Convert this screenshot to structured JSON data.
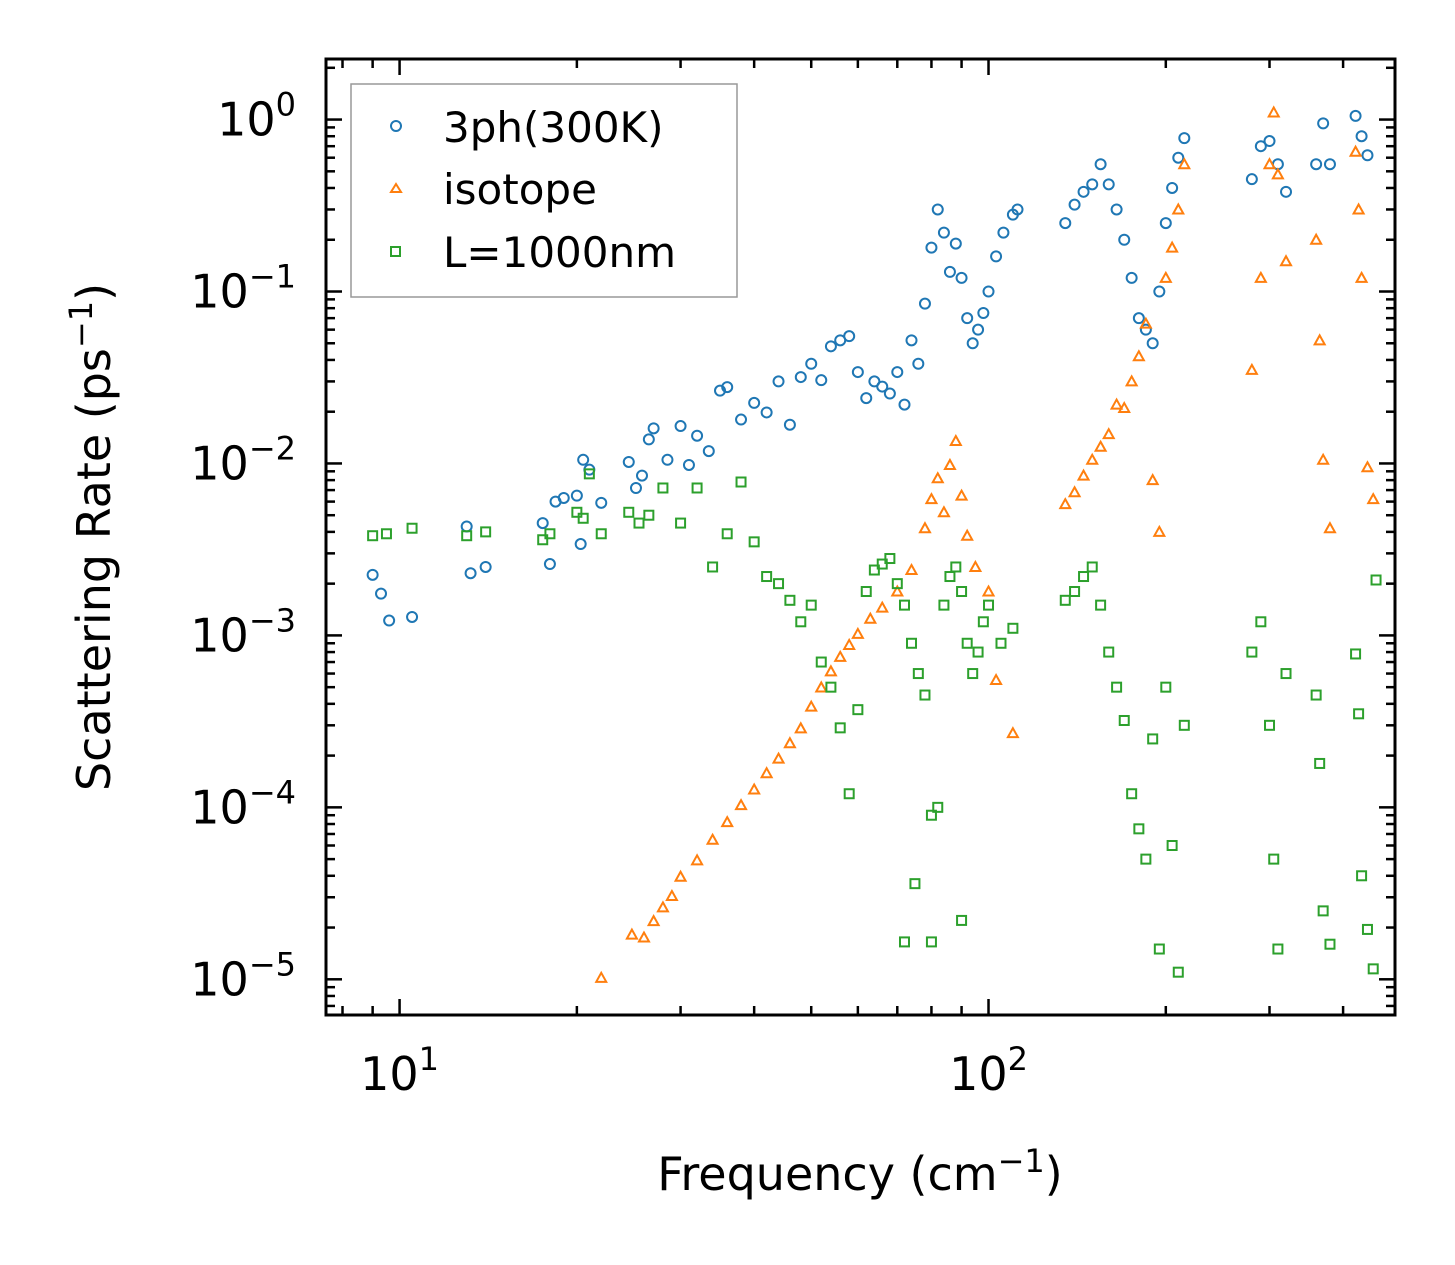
{
  "chart_data": {
    "type": "scatter",
    "xscale": "log",
    "yscale": "log",
    "xlim": [
      7.5,
      490
    ],
    "ylim": [
      6.2e-06,
      2.25
    ],
    "xlabel": {
      "base": "Frequency (cm",
      "sup": "−1",
      "tail": ")"
    },
    "ylabel": {
      "base": "Scattering Rate (ps",
      "sup": "−1",
      "tail": ")"
    },
    "xticks": [
      {
        "value": 10,
        "base": "10",
        "exp": "1"
      },
      {
        "value": 100,
        "base": "10",
        "exp": "2"
      }
    ],
    "yticks": [
      {
        "value": 1,
        "base": "10",
        "exp": "0"
      },
      {
        "value": 0.1,
        "base": "10",
        "exp": "−1"
      },
      {
        "value": 0.01,
        "base": "10",
        "exp": "−2"
      },
      {
        "value": 0.001,
        "base": "10",
        "exp": "−3"
      },
      {
        "value": 0.0001,
        "base": "10",
        "exp": "−4"
      },
      {
        "value": 1e-05,
        "base": "10",
        "exp": "−5"
      }
    ],
    "legend_position": "top-left",
    "series": [
      {
        "name": "3ph(300K)",
        "marker": "circle",
        "color": "#1f77b4",
        "points": [
          [
            9.0,
            0.00225
          ],
          [
            9.3,
            0.00175
          ],
          [
            9.6,
            0.00122
          ],
          [
            10.5,
            0.00128
          ],
          [
            13.0,
            0.0043
          ],
          [
            13.2,
            0.0023
          ],
          [
            14.0,
            0.0025
          ],
          [
            17.5,
            0.0045
          ],
          [
            18.0,
            0.0026
          ],
          [
            18.4,
            0.006
          ],
          [
            19.0,
            0.0063
          ],
          [
            20.0,
            0.0065
          ],
          [
            20.3,
            0.0034
          ],
          [
            20.5,
            0.0105
          ],
          [
            21.0,
            0.0092
          ],
          [
            22.0,
            0.0059
          ],
          [
            24.5,
            0.0102
          ],
          [
            25.2,
            0.0072
          ],
          [
            25.8,
            0.0085
          ],
          [
            26.5,
            0.0138
          ],
          [
            27.0,
            0.016
          ],
          [
            28.5,
            0.0105
          ],
          [
            30.0,
            0.0165
          ],
          [
            31.0,
            0.0098
          ],
          [
            32.0,
            0.0145
          ],
          [
            33.5,
            0.0118
          ],
          [
            35.0,
            0.0265
          ],
          [
            36.0,
            0.0278
          ],
          [
            38.0,
            0.018
          ],
          [
            40.0,
            0.0225
          ],
          [
            42.0,
            0.0198
          ],
          [
            44.0,
            0.03
          ],
          [
            46.0,
            0.0168
          ],
          [
            48.0,
            0.0318
          ],
          [
            50.0,
            0.038
          ],
          [
            52.0,
            0.0305
          ],
          [
            54.0,
            0.048
          ],
          [
            56.0,
            0.052
          ],
          [
            58.0,
            0.055
          ],
          [
            60.0,
            0.034
          ],
          [
            62.0,
            0.024
          ],
          [
            64.0,
            0.03
          ],
          [
            66.0,
            0.028
          ],
          [
            68.0,
            0.0255
          ],
          [
            70.0,
            0.034
          ],
          [
            72.0,
            0.022
          ],
          [
            74.0,
            0.052
          ],
          [
            76.0,
            0.038
          ],
          [
            78.0,
            0.085
          ],
          [
            80.0,
            0.18
          ],
          [
            82.0,
            0.3
          ],
          [
            84.0,
            0.22
          ],
          [
            86.0,
            0.13
          ],
          [
            88.0,
            0.19
          ],
          [
            90.0,
            0.12
          ],
          [
            92.0,
            0.07
          ],
          [
            94.0,
            0.05
          ],
          [
            96.0,
            0.06
          ],
          [
            98.0,
            0.075
          ],
          [
            100.0,
            0.1
          ],
          [
            103.0,
            0.16
          ],
          [
            106.0,
            0.22
          ],
          [
            110.0,
            0.28
          ],
          [
            112.0,
            0.3
          ],
          [
            135.0,
            0.25
          ],
          [
            140.0,
            0.32
          ],
          [
            145.0,
            0.38
          ],
          [
            150.0,
            0.42
          ],
          [
            155.0,
            0.55
          ],
          [
            160.0,
            0.42
          ],
          [
            165.0,
            0.3
          ],
          [
            170.0,
            0.2
          ],
          [
            175.0,
            0.12
          ],
          [
            180.0,
            0.07
          ],
          [
            185.0,
            0.06
          ],
          [
            190.0,
            0.05
          ],
          [
            195.0,
            0.1
          ],
          [
            200.0,
            0.25
          ],
          [
            205.0,
            0.4
          ],
          [
            210.0,
            0.6
          ],
          [
            215.0,
            0.78
          ],
          [
            280.0,
            0.45
          ],
          [
            290.0,
            0.7
          ],
          [
            300.0,
            0.75
          ],
          [
            310.0,
            0.55
          ],
          [
            320.0,
            0.38
          ],
          [
            360.0,
            0.55
          ],
          [
            370.0,
            0.95
          ],
          [
            380.0,
            0.55
          ],
          [
            420.0,
            1.05
          ],
          [
            430.0,
            0.8
          ],
          [
            440.0,
            0.62
          ]
        ]
      },
      {
        "name": "isotope",
        "marker": "triangle",
        "color": "#ff7f0e",
        "points": [
          [
            22.0,
            1.02e-05
          ],
          [
            24.8,
            1.82e-05
          ],
          [
            26.0,
            1.75e-05
          ],
          [
            27.0,
            2.18e-05
          ],
          [
            28.0,
            2.62e-05
          ],
          [
            29.0,
            3.05e-05
          ],
          [
            30.0,
            3.95e-05
          ],
          [
            32.0,
            4.92e-05
          ],
          [
            34.0,
            6.48e-05
          ],
          [
            36.0,
            8.2e-05
          ],
          [
            38.0,
            0.000103
          ],
          [
            40.0,
            0.000127
          ],
          [
            42.0,
            0.000158
          ],
          [
            44.0,
            0.000192
          ],
          [
            46.0,
            0.000236
          ],
          [
            48.0,
            0.000288
          ],
          [
            50.0,
            0.000385
          ],
          [
            52.0,
            0.000498
          ],
          [
            54.0,
            0.000618
          ],
          [
            56.0,
            0.00075
          ],
          [
            58.0,
            0.00088
          ],
          [
            60.0,
            0.00102
          ],
          [
            63.0,
            0.00125
          ],
          [
            66.0,
            0.00145
          ],
          [
            70.0,
            0.0018
          ],
          [
            74.0,
            0.0024
          ],
          [
            78.0,
            0.0042
          ],
          [
            80.0,
            0.0062
          ],
          [
            82.0,
            0.0082
          ],
          [
            84.0,
            0.0052
          ],
          [
            86.0,
            0.0098
          ],
          [
            88.0,
            0.0135
          ],
          [
            90.0,
            0.0065
          ],
          [
            92.0,
            0.0038
          ],
          [
            95.0,
            0.0025
          ],
          [
            100.0,
            0.0018
          ],
          [
            103.0,
            0.00055
          ],
          [
            110.0,
            0.00027
          ],
          [
            135.0,
            0.0058
          ],
          [
            140.0,
            0.0068
          ],
          [
            145.0,
            0.0085
          ],
          [
            150.0,
            0.0105
          ],
          [
            155.0,
            0.0125
          ],
          [
            160.0,
            0.0148
          ],
          [
            165.0,
            0.022
          ],
          [
            170.0,
            0.021
          ],
          [
            175.0,
            0.03
          ],
          [
            180.0,
            0.042
          ],
          [
            185.0,
            0.065
          ],
          [
            190.0,
            0.008
          ],
          [
            195.0,
            0.004
          ],
          [
            200.0,
            0.12
          ],
          [
            205.0,
            0.18
          ],
          [
            210.0,
            0.3
          ],
          [
            215.0,
            0.55
          ],
          [
            280.0,
            0.035
          ],
          [
            290.0,
            0.12
          ],
          [
            300.0,
            0.55
          ],
          [
            305.0,
            1.1
          ],
          [
            310.0,
            0.48
          ],
          [
            320.0,
            0.15
          ],
          [
            360.0,
            0.2
          ],
          [
            365.0,
            0.052
          ],
          [
            370.0,
            0.0105
          ],
          [
            380.0,
            0.0042
          ],
          [
            420.0,
            0.65
          ],
          [
            425.0,
            0.3
          ],
          [
            430.0,
            0.12
          ],
          [
            440.0,
            0.0095
          ],
          [
            450.0,
            0.0062
          ]
        ]
      },
      {
        "name": "L=1000nm",
        "marker": "square",
        "color": "#2ca02c",
        "points": [
          [
            9.0,
            0.0038
          ],
          [
            9.5,
            0.0039
          ],
          [
            10.5,
            0.0042
          ],
          [
            13.0,
            0.0038
          ],
          [
            14.0,
            0.004
          ],
          [
            17.5,
            0.0036
          ],
          [
            18.0,
            0.0039
          ],
          [
            20.0,
            0.0052
          ],
          [
            20.5,
            0.0048
          ],
          [
            21.0,
            0.0087
          ],
          [
            22.0,
            0.0039
          ],
          [
            24.5,
            0.0052
          ],
          [
            25.5,
            0.0045
          ],
          [
            26.5,
            0.005
          ],
          [
            28.0,
            0.0072
          ],
          [
            30.0,
            0.0045
          ],
          [
            32.0,
            0.0072
          ],
          [
            34.0,
            0.0025
          ],
          [
            36.0,
            0.0039
          ],
          [
            38.0,
            0.0078
          ],
          [
            40.0,
            0.0035
          ],
          [
            42.0,
            0.0022
          ],
          [
            44.0,
            0.002
          ],
          [
            46.0,
            0.0016
          ],
          [
            48.0,
            0.0012
          ],
          [
            50.0,
            0.0015
          ],
          [
            52.0,
            0.0007
          ],
          [
            54.0,
            0.0005
          ],
          [
            56.0,
            0.00029
          ],
          [
            58.0,
            0.00012
          ],
          [
            60.0,
            0.00037
          ],
          [
            62.0,
            0.0018
          ],
          [
            64.0,
            0.0024
          ],
          [
            66.0,
            0.0026
          ],
          [
            68.0,
            0.0028
          ],
          [
            70.0,
            0.002
          ],
          [
            72.0,
            0.0015
          ],
          [
            74.0,
            0.0009
          ],
          [
            76.0,
            0.0006
          ],
          [
            78.0,
            0.00045
          ],
          [
            80.0,
            9e-05
          ],
          [
            82.0,
            0.0001
          ],
          [
            84.0,
            0.0015
          ],
          [
            86.0,
            0.0022
          ],
          [
            88.0,
            0.0025
          ],
          [
            90.0,
            0.0018
          ],
          [
            92.0,
            0.0009
          ],
          [
            94.0,
            0.0006
          ],
          [
            96.0,
            0.0008
          ],
          [
            98.0,
            0.0012
          ],
          [
            100.0,
            0.0015
          ],
          [
            105.0,
            0.0009
          ],
          [
            110.0,
            0.0011
          ],
          [
            75.0,
            3.6e-05
          ],
          [
            72.0,
            1.65e-05
          ],
          [
            80.0,
            1.65e-05
          ],
          [
            90.0,
            2.2e-05
          ],
          [
            135.0,
            0.0016
          ],
          [
            140.0,
            0.0018
          ],
          [
            145.0,
            0.0022
          ],
          [
            150.0,
            0.0025
          ],
          [
            155.0,
            0.0015
          ],
          [
            160.0,
            0.0008
          ],
          [
            165.0,
            0.0005
          ],
          [
            170.0,
            0.00032
          ],
          [
            175.0,
            0.00012
          ],
          [
            180.0,
            7.5e-05
          ],
          [
            185.0,
            5e-05
          ],
          [
            190.0,
            0.00025
          ],
          [
            195.0,
            1.5e-05
          ],
          [
            200.0,
            0.0005
          ],
          [
            205.0,
            6e-05
          ],
          [
            210.0,
            1.1e-05
          ],
          [
            215.0,
            0.0003
          ],
          [
            280.0,
            0.0008
          ],
          [
            290.0,
            0.0012
          ],
          [
            300.0,
            0.0003
          ],
          [
            305.0,
            5e-05
          ],
          [
            310.0,
            1.5e-05
          ],
          [
            320.0,
            0.0006
          ],
          [
            360.0,
            0.00045
          ],
          [
            365.0,
            0.00018
          ],
          [
            370.0,
            2.5e-05
          ],
          [
            380.0,
            1.6e-05
          ],
          [
            420.0,
            0.00078
          ],
          [
            425.0,
            0.00035
          ],
          [
            430.0,
            4e-05
          ],
          [
            440.0,
            1.95e-05
          ],
          [
            450.0,
            1.15e-05
          ],
          [
            455.0,
            0.0021
          ]
        ]
      }
    ]
  }
}
